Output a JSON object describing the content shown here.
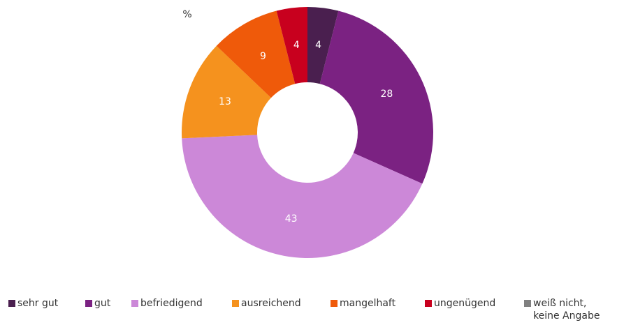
{
  "chart_data": {
    "type": "donut",
    "title": "%",
    "categories": [
      "sehr gut",
      "gut",
      "befriedigend",
      "ausreichend",
      "mangelhaft",
      "ungenügend",
      "weiß nicht, keine Angabe"
    ],
    "values": [
      4,
      28,
      43,
      13,
      9,
      4,
      0
    ],
    "colors": [
      "#4a1f4f",
      "#7b2282",
      "#cc88d8",
      "#f5921e",
      "#ef5a0a",
      "#c8001e",
      "#808080"
    ],
    "legend": "bottom"
  }
}
